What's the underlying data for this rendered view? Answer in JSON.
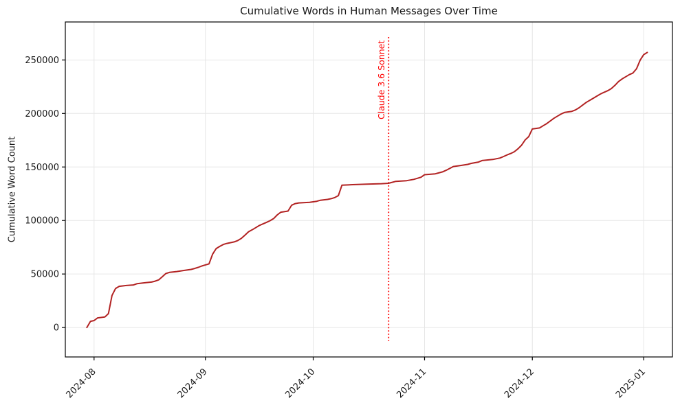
{
  "figure": {
    "title": "Cumulative Words in Human Messages Over Time",
    "background_color": "#ffffff"
  },
  "chart_data": {
    "type": "line",
    "subtype": "cumulative-step",
    "title": "Cumulative Words in Human Messages Over Time",
    "xlabel": "",
    "ylabel": "Cumulative Word Count",
    "grid": true,
    "legend": null,
    "line_color": "#b22222",
    "line_width": 2,
    "x_tick_labels": [
      "2024-08",
      "2024-09",
      "2024-10",
      "2024-11",
      "2024-12",
      "2025-01"
    ],
    "x_tick_dates": [
      "2024-08-01",
      "2024-09-01",
      "2024-10-01",
      "2024-11-01",
      "2024-12-01",
      "2025-01-01"
    ],
    "y_tick_labels": [
      "0",
      "50000",
      "100000",
      "150000",
      "200000",
      "250000"
    ],
    "y_tick_values": [
      0,
      50000,
      100000,
      150000,
      200000,
      250000
    ],
    "xlim": [
      "2024-07-24",
      "2025-01-09"
    ],
    "ylim": [
      -27500,
      285500
    ],
    "annotation": {
      "label": "Claude 3.6 Sonnet",
      "date": "2024-10-22",
      "color": "#ff0000",
      "style": "dotted-vertical-line"
    },
    "series": [
      {
        "name": "cumulative_words",
        "x": [
          "2024-07-30",
          "2024-07-31",
          "2024-08-01",
          "2024-08-02",
          "2024-08-04",
          "2024-08-05",
          "2024-08-06",
          "2024-08-07",
          "2024-08-08",
          "2024-08-10",
          "2024-08-12",
          "2024-08-13",
          "2024-08-15",
          "2024-08-17",
          "2024-08-18",
          "2024-08-19",
          "2024-08-20",
          "2024-08-21",
          "2024-08-22",
          "2024-08-24",
          "2024-08-26",
          "2024-08-28",
          "2024-08-29",
          "2024-08-30",
          "2024-08-31",
          "2024-09-01",
          "2024-09-02",
          "2024-09-03",
          "2024-09-04",
          "2024-09-05",
          "2024-09-06",
          "2024-09-07",
          "2024-09-09",
          "2024-09-10",
          "2024-09-11",
          "2024-09-12",
          "2024-09-13",
          "2024-09-14",
          "2024-09-15",
          "2024-09-16",
          "2024-09-17",
          "2024-09-18",
          "2024-09-19",
          "2024-09-20",
          "2024-09-21",
          "2024-09-22",
          "2024-09-24",
          "2024-09-25",
          "2024-09-26",
          "2024-09-27",
          "2024-09-30",
          "2024-10-02",
          "2024-10-03",
          "2024-10-05",
          "2024-10-06",
          "2024-10-07",
          "2024-10-08",
          "2024-10-09",
          "2024-10-12",
          "2024-10-16",
          "2024-10-20",
          "2024-10-22",
          "2024-10-24",
          "2024-10-27",
          "2024-10-29",
          "2024-10-31",
          "2024-11-01",
          "2024-11-04",
          "2024-11-06",
          "2024-11-07",
          "2024-11-08",
          "2024-11-09",
          "2024-11-11",
          "2024-11-13",
          "2024-11-14",
          "2024-11-16",
          "2024-11-17",
          "2024-11-20",
          "2024-11-22",
          "2024-11-23",
          "2024-11-24",
          "2024-11-25",
          "2024-11-26",
          "2024-11-27",
          "2024-11-28",
          "2024-11-29",
          "2024-11-30",
          "2024-12-01",
          "2024-12-03",
          "2024-12-04",
          "2024-12-05",
          "2024-12-06",
          "2024-12-07",
          "2024-12-08",
          "2024-12-09",
          "2024-12-10",
          "2024-12-12",
          "2024-12-13",
          "2024-12-14",
          "2024-12-15",
          "2024-12-16",
          "2024-12-17",
          "2024-12-18",
          "2024-12-19",
          "2024-12-20",
          "2024-12-21",
          "2024-12-22",
          "2024-12-23",
          "2024-12-24",
          "2024-12-25",
          "2024-12-26",
          "2024-12-27",
          "2024-12-28",
          "2024-12-29",
          "2024-12-30",
          "2024-12-31",
          "2025-01-01",
          "2025-01-02"
        ],
        "y": [
          0,
          5800,
          6500,
          9000,
          9800,
          13000,
          30000,
          36500,
          38500,
          39300,
          39800,
          41000,
          41800,
          42500,
          43300,
          44500,
          47500,
          50500,
          51500,
          52300,
          53300,
          54300,
          55200,
          56200,
          57500,
          58500,
          59500,
          68500,
          73800,
          75800,
          77600,
          78600,
          80000,
          81300,
          83300,
          86300,
          89500,
          91300,
          93300,
          95300,
          96800,
          98300,
          99800,
          101800,
          105300,
          107800,
          108800,
          114300,
          115800,
          116400,
          117000,
          118000,
          118900,
          119700,
          120400,
          121400,
          123200,
          133000,
          133500,
          134000,
          134400,
          134800,
          136600,
          137200,
          138400,
          140400,
          142800,
          143600,
          145400,
          146900,
          148600,
          150400,
          151400,
          152400,
          153400,
          154600,
          156000,
          157000,
          158400,
          159800,
          161300,
          162600,
          164300,
          167000,
          170400,
          175300,
          178400,
          185500,
          186500,
          188500,
          190500,
          193000,
          195500,
          197500,
          199500,
          201000,
          202000,
          203300,
          205300,
          207800,
          210300,
          212300,
          214300,
          216300,
          218300,
          219800,
          221300,
          223300,
          226300,
          229800,
          232300,
          234300,
          236300,
          237800,
          241800,
          249800,
          255000,
          257000
        ]
      }
    ]
  }
}
